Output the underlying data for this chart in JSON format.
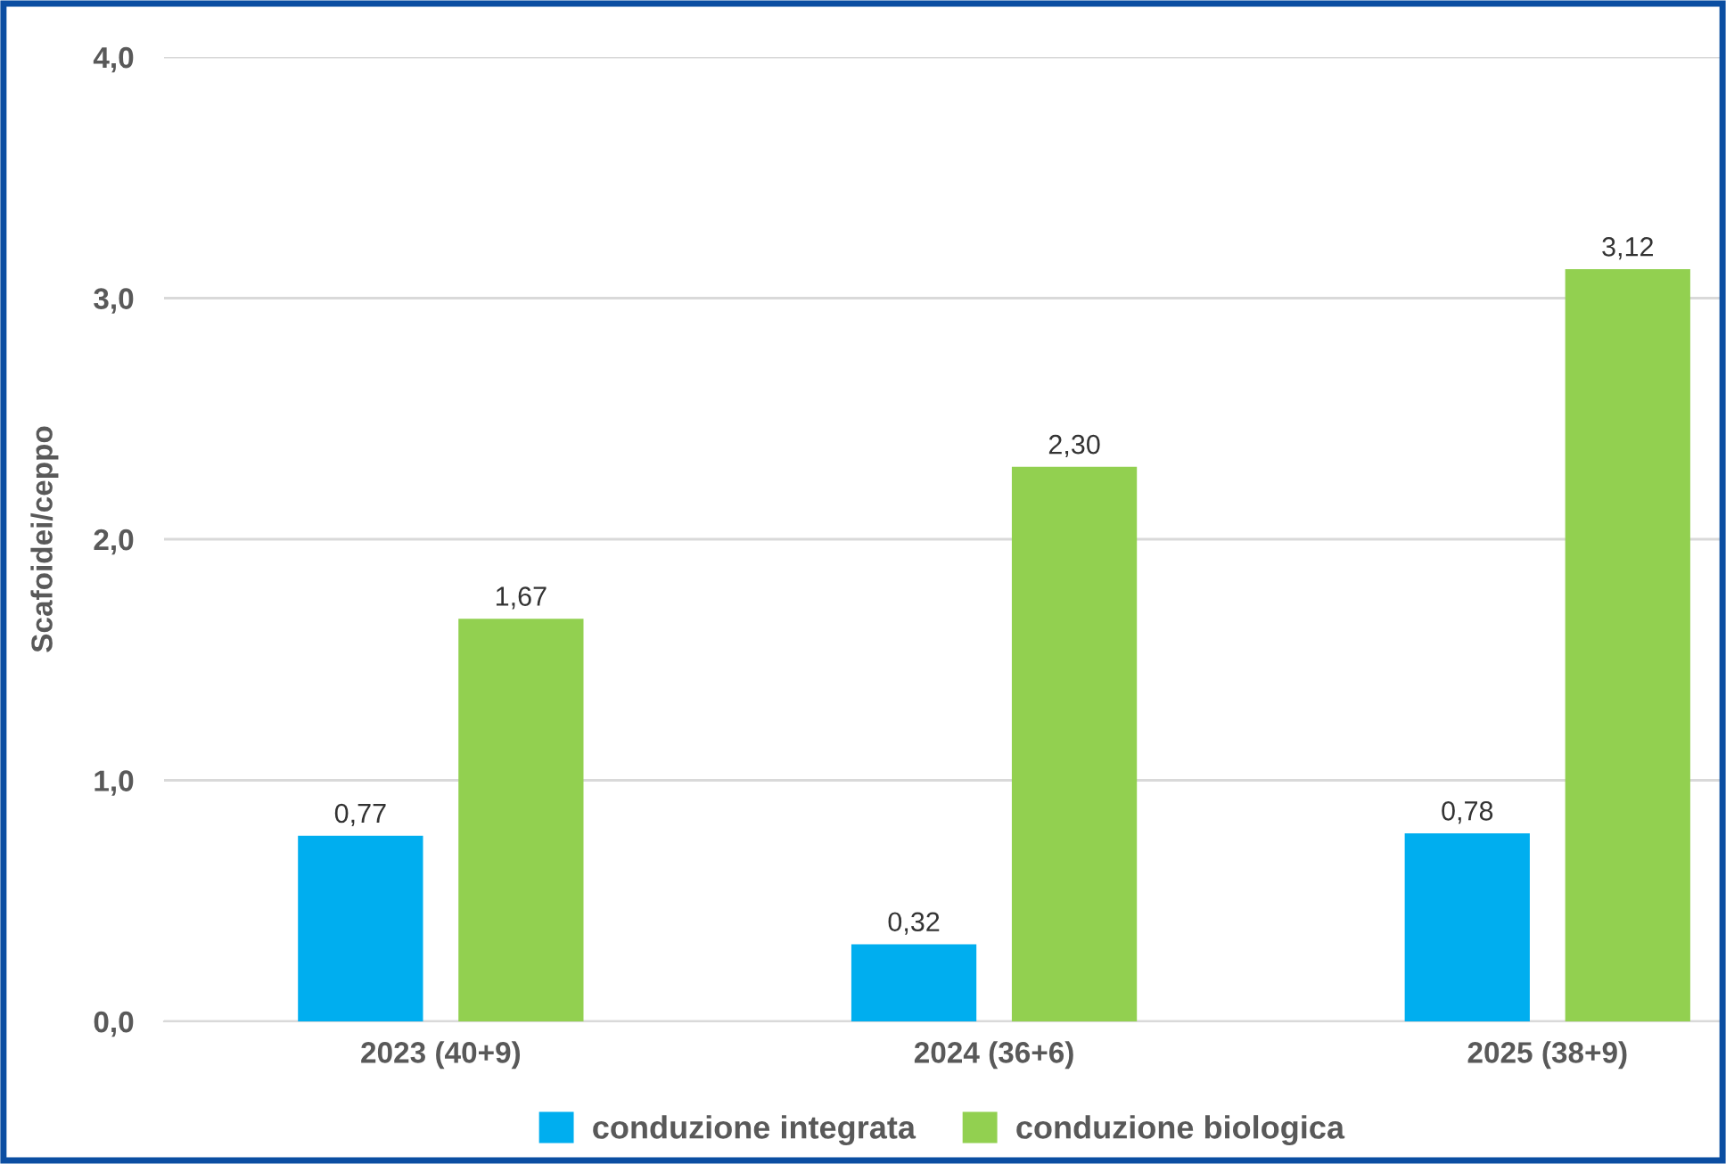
{
  "chart_data": {
    "type": "bar",
    "ylabel": "Scafoidei/ceppo",
    "categories": [
      "2023 (40+9)",
      "2024 (36+6)",
      "2025 (38+9)"
    ],
    "series": [
      {
        "name": "conduzione integrata",
        "color": "#00aeef",
        "values": [
          0.77,
          0.32,
          0.78
        ],
        "value_labels": [
          "0,77",
          "0,32",
          "0,78"
        ]
      },
      {
        "name": "conduzione biologica",
        "color": "#92d050",
        "values": [
          1.67,
          2.3,
          3.12
        ],
        "value_labels": [
          "1,67",
          "2,30",
          "3,12"
        ]
      }
    ],
    "ylim": [
      0,
      4
    ],
    "yticks": [
      {
        "value": 0,
        "label": "0,0"
      },
      {
        "value": 1,
        "label": "1,0"
      },
      {
        "value": 2,
        "label": "2,0"
      },
      {
        "value": 3,
        "label": "3,0"
      },
      {
        "value": 4,
        "label": "4,0"
      }
    ],
    "grid": "y",
    "legend": "bottom"
  }
}
